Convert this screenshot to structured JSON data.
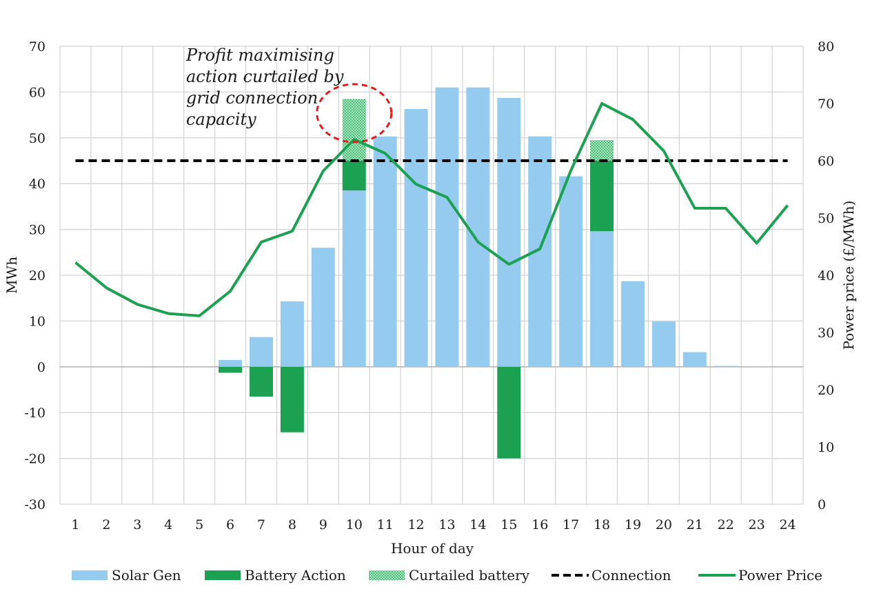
{
  "chart_data": {
    "type": "bar",
    "title": "",
    "xlabel": "Hour of day",
    "ylabel": "MWh",
    "y2label": "Power price (£/MWh)",
    "ylim": [
      -30,
      70
    ],
    "y2lim": [
      0,
      80
    ],
    "yticks": [
      70,
      60,
      50,
      40,
      30,
      20,
      10,
      0,
      -10,
      -20,
      -30
    ],
    "y2ticks": [
      80,
      70,
      60,
      50,
      40,
      30,
      20,
      10,
      0
    ],
    "grid": true,
    "legend_position": "bottom",
    "categories": [
      "1",
      "2",
      "3",
      "4",
      "5",
      "6",
      "7",
      "8",
      "9",
      "10",
      "11",
      "12",
      "13",
      "14",
      "15",
      "16",
      "17",
      "18",
      "19",
      "20",
      "21",
      "22",
      "23",
      "24"
    ],
    "series": [
      {
        "name": "Solar Gen",
        "kind": "bar",
        "color": "#95cbee",
        "values": [
          0,
          0,
          0,
          0,
          0,
          1.5,
          6.5,
          14.3,
          26,
          38.5,
          50.3,
          56.3,
          61,
          61,
          58.7,
          50.3,
          41.6,
          29.6,
          18.7,
          9.9,
          3.2,
          0.2,
          0,
          0
        ]
      },
      {
        "name": "Battery Action",
        "kind": "bar",
        "color": "#1ba151",
        "values": [
          0,
          0,
          0,
          0,
          0,
          -1.3,
          -6.5,
          -14.3,
          0,
          6.5,
          0,
          0,
          0,
          0,
          -20,
          0,
          0,
          15.4,
          0,
          0,
          0,
          0,
          0,
          0
        ]
      },
      {
        "name": "Curtailed battery",
        "kind": "bar-pattern",
        "color": "#1ba151",
        "values": [
          0,
          0,
          0,
          0,
          0,
          0,
          0,
          0,
          0,
          13.5,
          0,
          0,
          0,
          0,
          0,
          0,
          0,
          4.5,
          0,
          0,
          0,
          0,
          0,
          0
        ]
      },
      {
        "name": "Connection",
        "kind": "line-dashed",
        "color": "#000000",
        "value": 45
      },
      {
        "name": "Power Price",
        "kind": "line",
        "axis": "right",
        "color": "#1ba151",
        "values": [
          42.2,
          37.8,
          34.9,
          33.3,
          32.9,
          37.2,
          45.8,
          47.7,
          58.2,
          63.7,
          61.3,
          55.9,
          53.6,
          45.8,
          41.9,
          44.6,
          58.3,
          70,
          67.2,
          61.7,
          51.7,
          51.7,
          45.6,
          52.2
        ]
      }
    ],
    "annotation": {
      "lines": [
        "Profit maximising",
        "action curtailed by",
        "grid connection",
        "capacity"
      ],
      "target_category": "10",
      "marker": "dashed-red-ellipse",
      "marker_color": "#e8191a"
    }
  }
}
